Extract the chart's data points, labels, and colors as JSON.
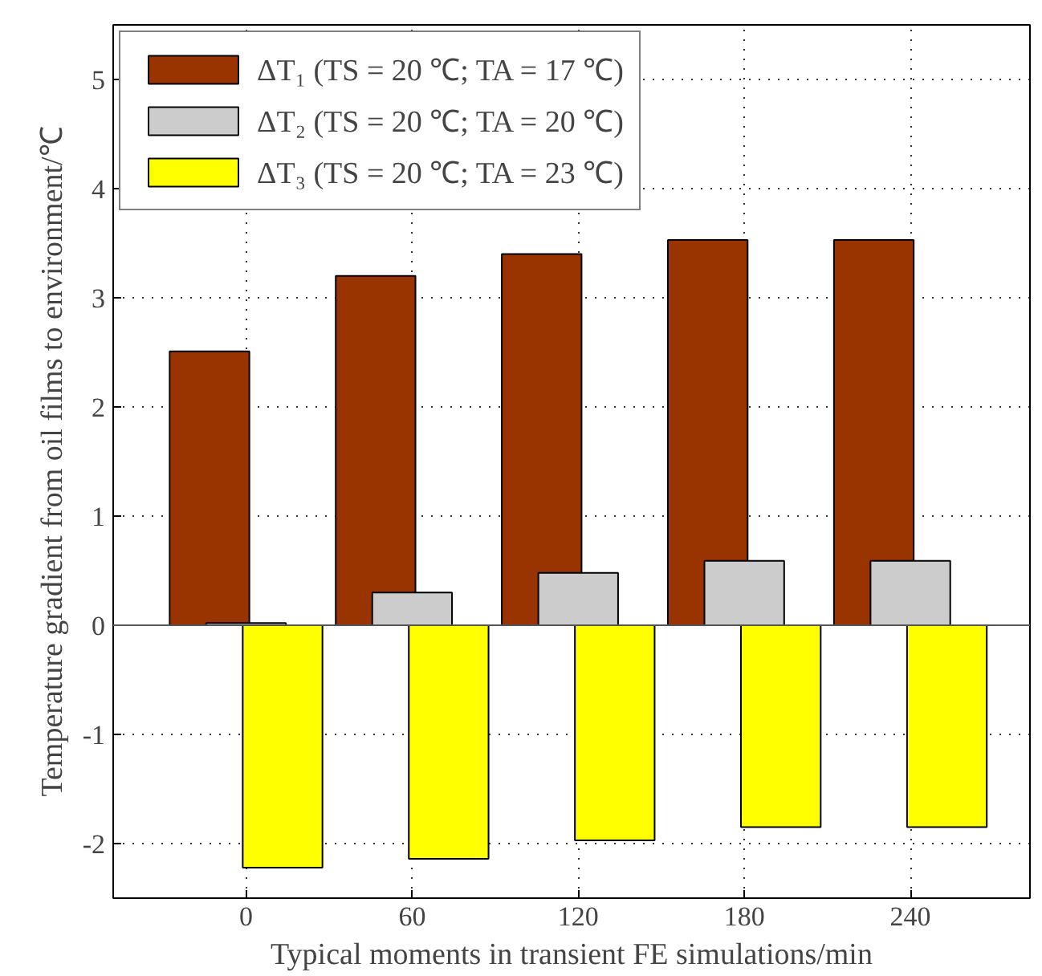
{
  "chart_data": {
    "type": "bar",
    "xlabel": "Typical moments in transient FE simulations/min",
    "ylabel": "Temperature gradient from oil films to environment/℃",
    "categories": [
      "0",
      "60",
      "120",
      "180",
      "240"
    ],
    "series": [
      {
        "name": "ΔT₁ (TS = 20 ℃; TA = 17 ℃)",
        "color": "#993300",
        "values": [
          2.51,
          3.2,
          3.4,
          3.53,
          3.53
        ]
      },
      {
        "name": "ΔT₂ (TS = 20 ℃; TA = 20 ℃)",
        "color": "#cccccc",
        "values": [
          0.02,
          0.3,
          0.48,
          0.59,
          0.59
        ]
      },
      {
        "name": "ΔT₃ (TS = 20 ℃; TA = 23 ℃)",
        "color": "#ffff00",
        "values": [
          -2.22,
          -2.14,
          -1.97,
          -1.85,
          -1.85
        ]
      }
    ],
    "ylim": [
      -2.5,
      5.5
    ],
    "yticks": [
      {
        "value": -2,
        "label": "-2"
      },
      {
        "value": -1,
        "label": "-1"
      },
      0,
      1,
      2,
      3,
      4,
      5
    ],
    "grid": true,
    "legend": "top left"
  }
}
